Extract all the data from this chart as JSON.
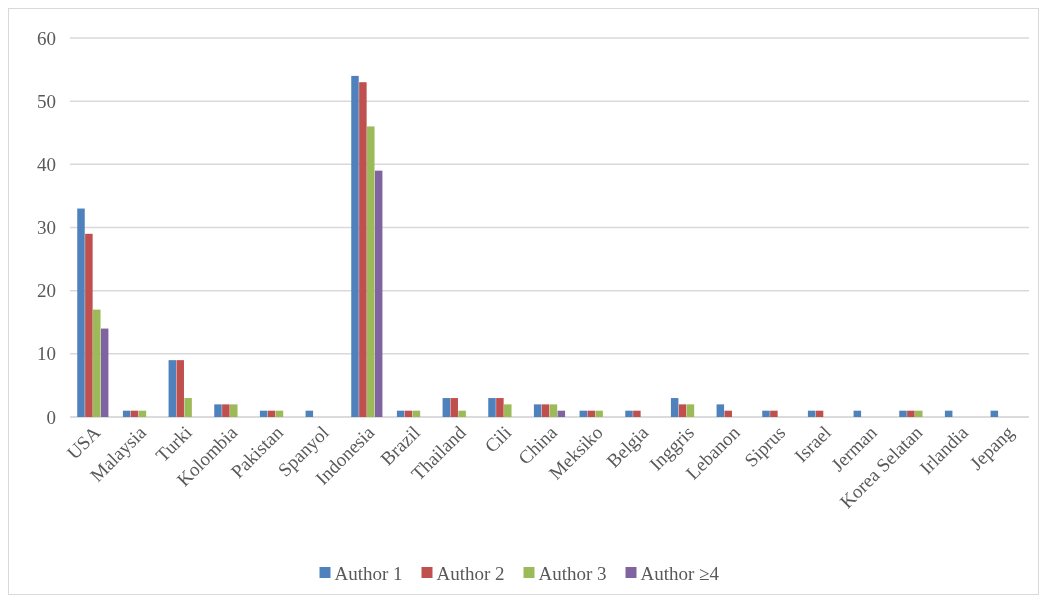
{
  "chart_data": {
    "type": "bar",
    "categories": [
      "USA",
      "Malaysia",
      "Turki",
      "Kolombia",
      "Pakistan",
      "Spanyol",
      "Indonesia",
      "Brazil",
      "Thailand",
      "Cili",
      "China",
      "Meksiko",
      "Belgia",
      "Inggris",
      "Lebanon",
      "Siprus",
      "Israel",
      "Jerman",
      "Korea Selatan",
      "Irlandia",
      "Jepang"
    ],
    "series": [
      {
        "name": "Author 1",
        "color": "#4f81bd",
        "values": [
          33,
          1,
          9,
          2,
          1,
          1,
          54,
          1,
          3,
          3,
          2,
          1,
          1,
          3,
          2,
          1,
          1,
          1,
          1,
          1,
          1
        ]
      },
      {
        "name": "Author 2",
        "color": "#c0504d",
        "values": [
          29,
          1,
          9,
          2,
          1,
          0,
          53,
          1,
          3,
          3,
          2,
          1,
          1,
          2,
          1,
          1,
          1,
          0,
          1,
          0,
          0
        ]
      },
      {
        "name": "Author 3",
        "color": "#9bbb59",
        "values": [
          17,
          1,
          3,
          2,
          1,
          0,
          46,
          1,
          1,
          2,
          2,
          1,
          0,
          2,
          0,
          0,
          0,
          0,
          1,
          0,
          0
        ]
      },
      {
        "name": "Author ≥4",
        "color": "#8064a2",
        "values": [
          14,
          0,
          0,
          0,
          0,
          0,
          39,
          0,
          0,
          0,
          1,
          0,
          0,
          0,
          0,
          0,
          0,
          0,
          0,
          0,
          0
        ]
      }
    ],
    "ylim": [
      0,
      60
    ],
    "yticks": [
      0,
      10,
      20,
      30,
      40,
      50,
      60
    ],
    "grid": "y",
    "legend": "bottom"
  }
}
